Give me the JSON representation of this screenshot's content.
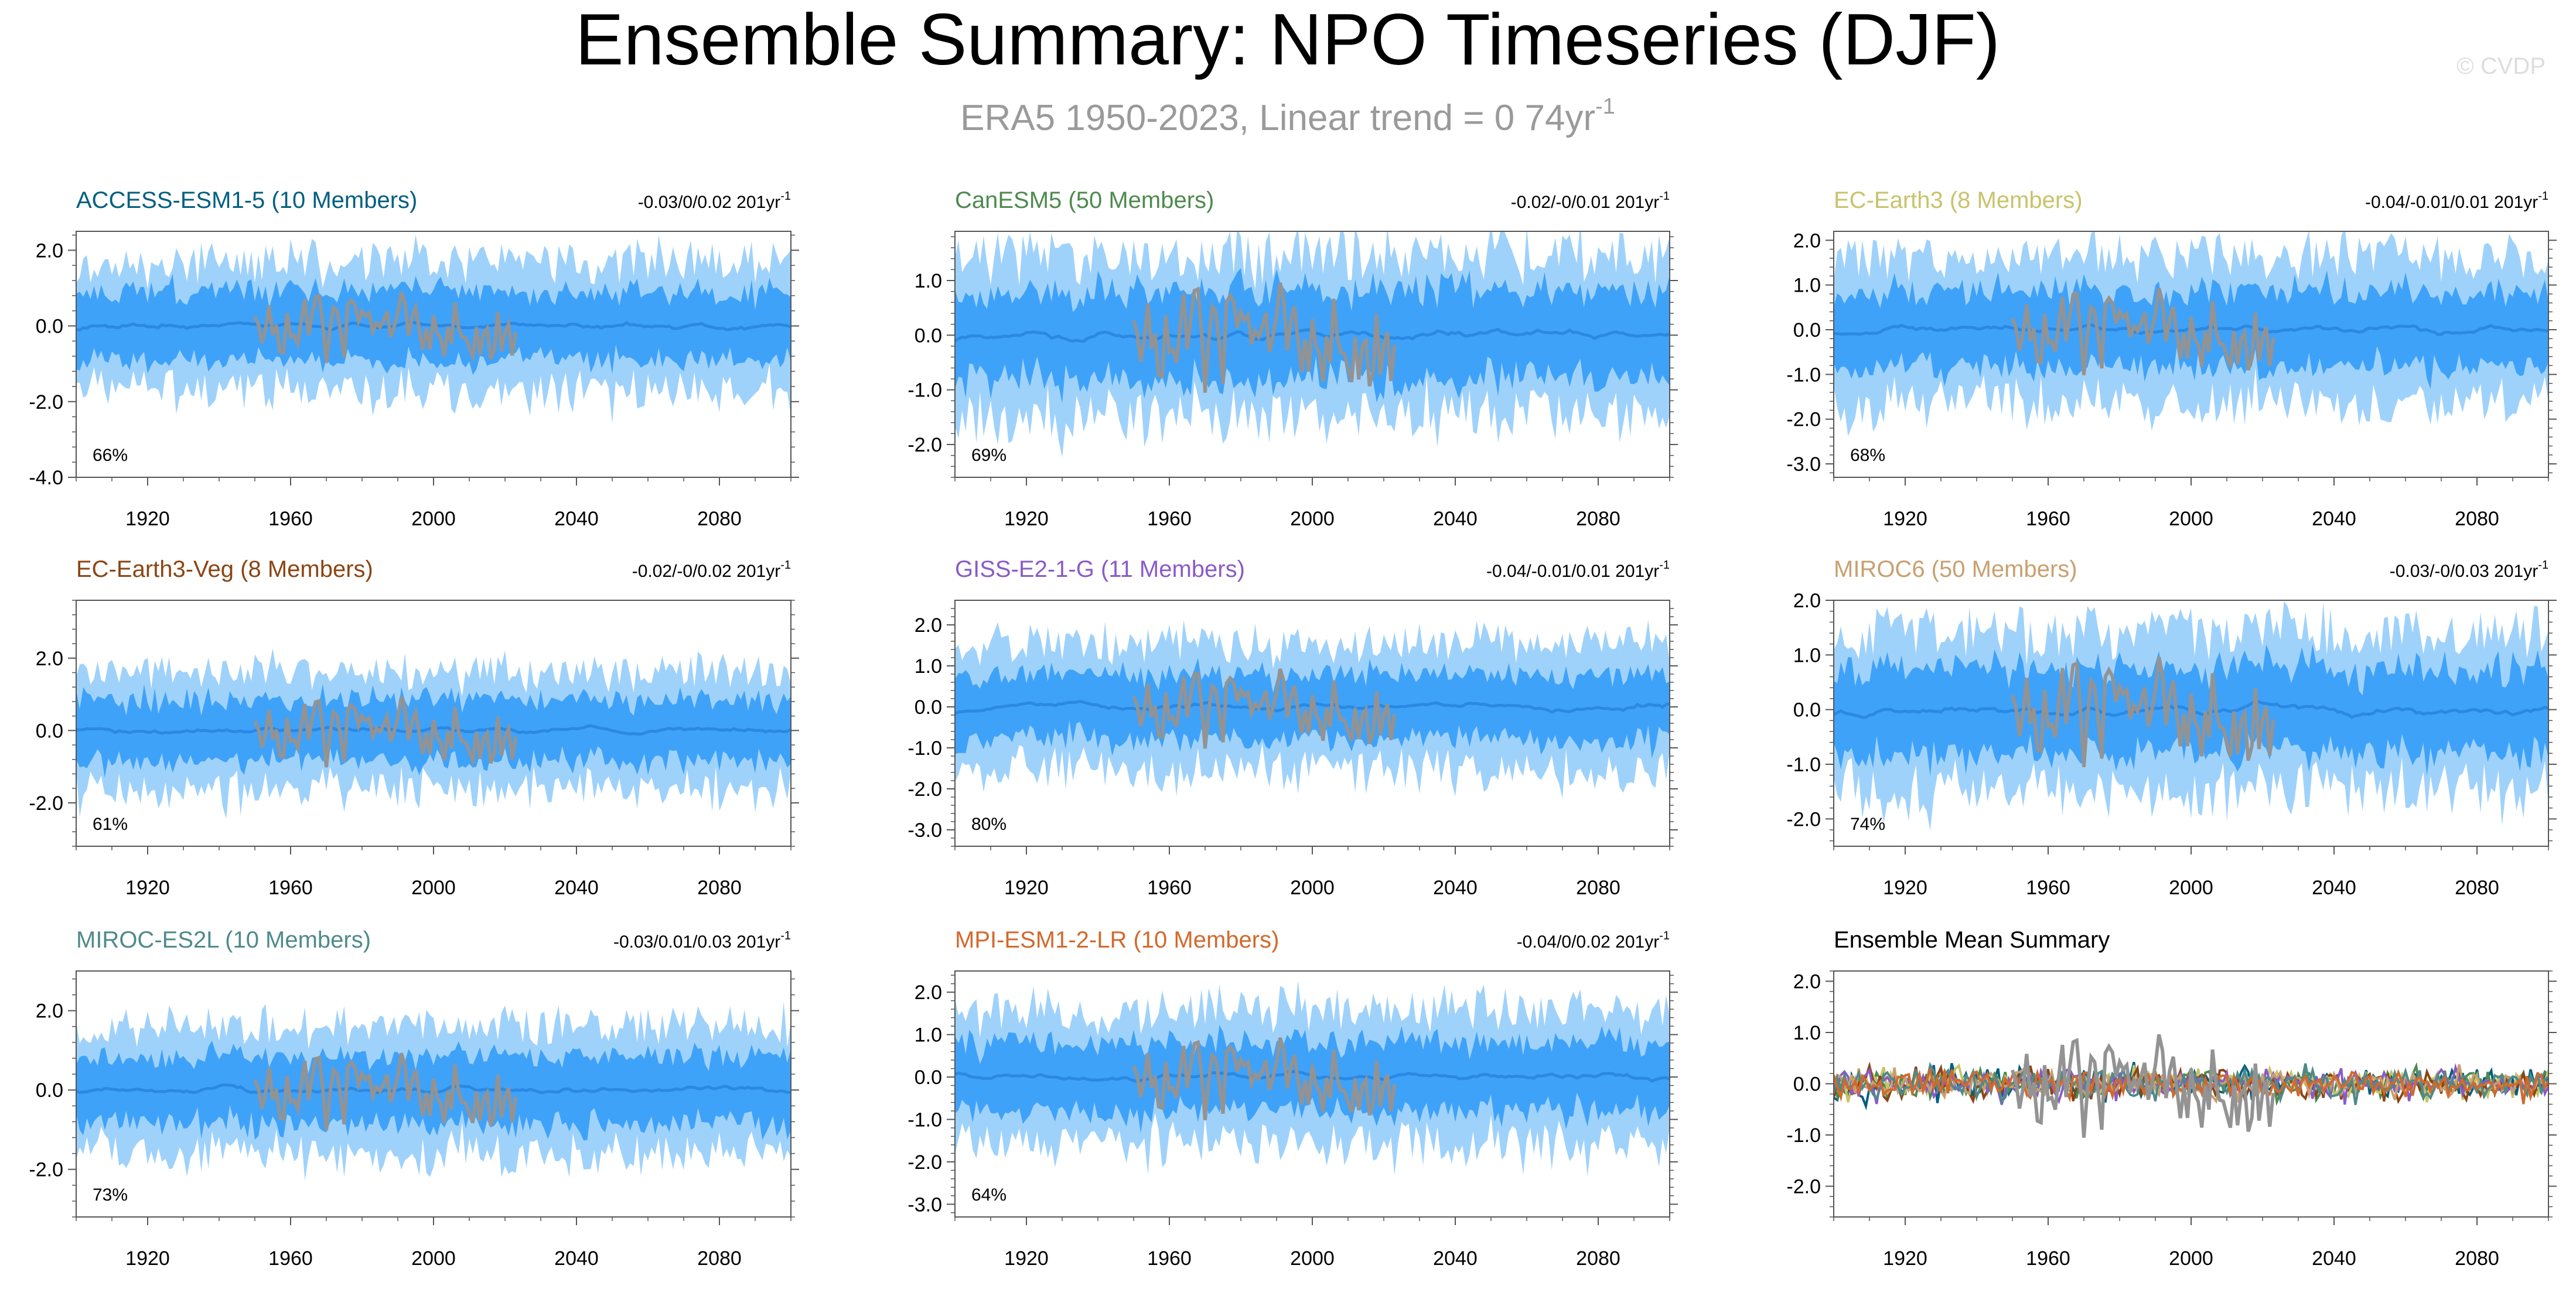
{
  "figure": {
    "title": "Ensemble Summary: NPO Timeseries (DJF)",
    "subtitle_main": "ERA5 1950-2023, Linear trend = 0 74yr",
    "subtitle_sup": "-1",
    "watermark": "© CVDP"
  },
  "colors": {
    "outer_band": "#9fd2fb",
    "inner_band": "#3fa2f9",
    "ens_mean": "#2b88e3",
    "obs": "#939393",
    "axis": "#555555",
    "title": "#000000",
    "subtitle": "#9a9a9a",
    "watermark": "#dddddd"
  },
  "chart_data": [
    {
      "type": "area",
      "model": "ACCESS-ESM1-5 (10 Members)",
      "model_color": "#005f80",
      "trend_text": "-0.03/0/0.02 201yr",
      "trend_sup": "-1",
      "pct": "66%",
      "ylim": [
        -4.0,
        2.5
      ],
      "yticks": [
        2.0,
        0.0,
        -2.0,
        -4.0
      ],
      "ytick_labels": [
        "2.0",
        "0.0",
        "-2.0",
        "-4.0"
      ],
      "xlim": [
        1900,
        2100
      ],
      "xticks": [
        1920,
        1960,
        2000,
        2040,
        2080
      ],
      "xtick_labels": [
        "1920",
        "1960",
        "2000",
        "2040",
        "2080"
      ],
      "outer_amp": 2.2,
      "inner_amp": 1.15,
      "seed": 11,
      "obs_range": [
        1950,
        2023
      ],
      "obs_amp": 1.35
    },
    {
      "type": "area",
      "model": "CanESM5 (50 Members)",
      "model_color": "#4e8a4e",
      "trend_text": "-0.02/-0/0.01 201yr",
      "trend_sup": "-1",
      "pct": "69%",
      "ylim": [
        -2.6,
        1.9
      ],
      "yticks": [
        1.0,
        0.0,
        -1.0,
        -2.0
      ],
      "ytick_labels": [
        "1.0",
        "0.0",
        "-1.0",
        "-2.0"
      ],
      "xlim": [
        1900,
        2100
      ],
      "xticks": [
        1920,
        1960,
        2000,
        2040,
        2080
      ],
      "xtick_labels": [
        "1920",
        "1960",
        "2000",
        "2040",
        "2080"
      ],
      "outer_amp": 1.9,
      "inner_amp": 1.05,
      "seed": 23,
      "obs_range": [
        1950,
        2023
      ],
      "obs_amp": 1.45
    },
    {
      "type": "area",
      "model": "EC-Earth3 (8 Members)",
      "model_color": "#c8c36a",
      "trend_text": "-0.04/-0.01/0.01 201yr",
      "trend_sup": "-1",
      "pct": "68%",
      "ylim": [
        -3.3,
        2.2
      ],
      "yticks": [
        2.0,
        1.0,
        0.0,
        -1.0,
        -2.0,
        -3.0
      ],
      "ytick_labels": [
        "2.0",
        "1.0",
        "0.0",
        "-1.0",
        "-2.0",
        "-3.0"
      ],
      "xlim": [
        1900,
        2100
      ],
      "xticks": [
        1920,
        1960,
        2000,
        2040,
        2080
      ],
      "xtick_labels": [
        "1920",
        "1960",
        "2000",
        "2040",
        "2080"
      ],
      "outer_amp": 2.1,
      "inner_amp": 1.1,
      "seed": 37,
      "obs_range": [
        1950,
        2023
      ],
      "obs_amp": 1.4
    },
    {
      "type": "area",
      "model": "EC-Earth3-Veg (8 Members)",
      "model_color": "#8b4513",
      "trend_text": "-0.02/-0/0.02 201yr",
      "trend_sup": "-1",
      "pct": "61%",
      "ylim": [
        -3.2,
        3.6
      ],
      "yticks": [
        2.0,
        0.0,
        -2.0
      ],
      "ytick_labels": [
        "2.0",
        "0.0",
        "-2.0"
      ],
      "xlim": [
        1900,
        2100
      ],
      "xticks": [
        1920,
        1960,
        2000,
        2040,
        2080
      ],
      "xtick_labels": [
        "1920",
        "1960",
        "2000",
        "2040",
        "2080"
      ],
      "outer_amp": 2.1,
      "inner_amp": 1.1,
      "seed": 41,
      "obs_range": [
        1950,
        2023
      ],
      "obs_amp": 1.4
    },
    {
      "type": "area",
      "model": "GISS-E2-1-G (11 Members)",
      "model_color": "#8a5ac8",
      "trend_text": "-0.04/-0.01/0.01 201yr",
      "trend_sup": "-1",
      "pct": "80%",
      "ylim": [
        -3.4,
        2.6
      ],
      "yticks": [
        2.0,
        1.0,
        0.0,
        -1.0,
        -2.0,
        -3.0
      ],
      "ytick_labels": [
        "2.0",
        "1.0",
        "0.0",
        "-1.0",
        "-2.0",
        "-3.0"
      ],
      "xlim": [
        1900,
        2100
      ],
      "xticks": [
        1920,
        1960,
        2000,
        2040,
        2080
      ],
      "xtick_labels": [
        "1920",
        "1960",
        "2000",
        "2040",
        "2080"
      ],
      "outer_amp": 2.0,
      "inner_amp": 1.05,
      "seed": 53,
      "obs_range": [
        1950,
        2023
      ],
      "obs_amp": 1.4
    },
    {
      "type": "area",
      "model": "MIROC6 (50 Members)",
      "model_color": "#c8a070",
      "trend_text": "-0.03/-0/0.03 201yr",
      "trend_sup": "-1",
      "pct": "74%",
      "ylim": [
        -2.5,
        2.0
      ],
      "yticks": [
        2.0,
        1.0,
        0.0,
        -1.0,
        -2.0
      ],
      "ytick_labels": [
        "2.0",
        "1.0",
        "0.0",
        "-1.0",
        "-2.0"
      ],
      "xlim": [
        1900,
        2100
      ],
      "xticks": [
        1920,
        1960,
        2000,
        2040,
        2080
      ],
      "xtick_labels": [
        "1920",
        "1960",
        "2000",
        "2040",
        "2080"
      ],
      "outer_amp": 1.85,
      "inner_amp": 1.0,
      "seed": 67,
      "obs_range": [
        1950,
        2023
      ],
      "obs_amp": 1.45
    },
    {
      "type": "area",
      "model": "MIROC-ES2L (10 Members)",
      "model_color": "#4f8a8a",
      "trend_text": "-0.03/0.01/0.03 201yr",
      "trend_sup": "-1",
      "pct": "73%",
      "ylim": [
        -3.2,
        3.0
      ],
      "yticks": [
        2.0,
        0.0,
        -2.0
      ],
      "ytick_labels": [
        "2.0",
        "0.0",
        "-2.0"
      ],
      "xlim": [
        1900,
        2100
      ],
      "xticks": [
        1920,
        1960,
        2000,
        2040,
        2080
      ],
      "xtick_labels": [
        "1920",
        "1960",
        "2000",
        "2040",
        "2080"
      ],
      "outer_amp": 2.1,
      "inner_amp": 1.1,
      "seed": 79,
      "obs_range": [
        1950,
        2023
      ],
      "obs_amp": 1.4
    },
    {
      "type": "area",
      "model": "MPI-ESM1-2-LR (10 Members)",
      "model_color": "#d2692d",
      "trend_text": "-0.04/0/0.02 201yr",
      "trend_sup": "-1",
      "pct": "64%",
      "ylim": [
        -3.3,
        2.5
      ],
      "yticks": [
        2.0,
        1.0,
        0.0,
        -1.0,
        -2.0,
        -3.0
      ],
      "ytick_labels": [
        "2.0",
        "1.0",
        "0.0",
        "-1.0",
        "-2.0",
        "-3.0"
      ],
      "xlim": [
        1900,
        2100
      ],
      "xticks": [
        1920,
        1960,
        2000,
        2040,
        2080
      ],
      "xtick_labels": [
        "1920",
        "1960",
        "2000",
        "2040",
        "2080"
      ],
      "outer_amp": 2.05,
      "inner_amp": 1.05,
      "seed": 83,
      "obs_range": [
        1950,
        2023
      ],
      "obs_amp": 1.4
    },
    {
      "type": "line",
      "model": "Ensemble Mean Summary",
      "model_color": "#000000",
      "trend_text": "",
      "trend_sup": "",
      "pct": "",
      "ylim": [
        -2.6,
        2.2
      ],
      "yticks": [
        2.0,
        1.0,
        0.0,
        -1.0,
        -2.0
      ],
      "ytick_labels": [
        "2.0",
        "1.0",
        "0.0",
        "-1.0",
        "-2.0"
      ],
      "xlim": [
        1900,
        2100
      ],
      "xticks": [
        1920,
        1960,
        2000,
        2040,
        2080
      ],
      "xtick_labels": [
        "1920",
        "1960",
        "2000",
        "2040",
        "2080"
      ],
      "series_colors": [
        "#005f80",
        "#4e8a4e",
        "#c8c36a",
        "#8b4513",
        "#8a5ac8",
        "#c8a070",
        "#4f8a8a",
        "#d2692d"
      ],
      "series_amp": 0.45,
      "seed": 97,
      "obs_range": [
        1950,
        2023
      ],
      "obs_amp": 1.45
    }
  ]
}
